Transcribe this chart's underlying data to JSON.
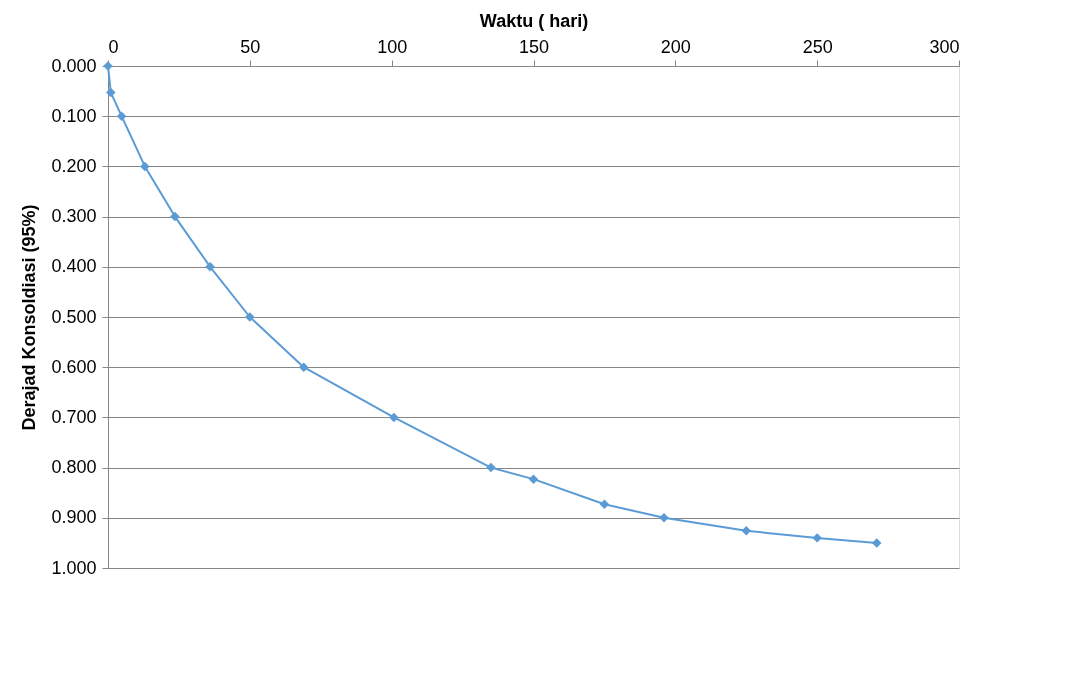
{
  "chart_data": {
    "type": "line",
    "xlabel": "Waktu ( hari)",
    "ylabel": "Derajad Konsoldiasi (95%)",
    "series": [
      {
        "color": "#5b9bd5",
        "x": [
          0,
          1,
          4.8,
          13,
          23.6,
          36,
          50,
          69,
          100.8,
          135,
          150,
          175,
          196,
          225,
          250,
          271
        ],
        "values": [
          0.0,
          0.053,
          0.1,
          0.2,
          0.3,
          0.4,
          0.5,
          0.6,
          0.7,
          0.8,
          0.823,
          0.873,
          0.9,
          0.926,
          0.94,
          0.95
        ]
      }
    ],
    "xlim": [
      0,
      300
    ],
    "xticks": [
      0,
      50,
      100,
      150,
      200,
      250,
      300
    ],
    "ylim": [
      1.0,
      0.0
    ],
    "yticks": [
      {
        "value": 0,
        "label": "0.000"
      },
      {
        "value": 0.1,
        "label": "0.100"
      },
      {
        "value": 0.2,
        "label": "0.200"
      },
      {
        "value": 0.3,
        "label": "0.300"
      },
      {
        "value": 0.4,
        "label": "0.400"
      },
      {
        "value": 0.5,
        "label": "0.500"
      },
      {
        "value": 0.6,
        "label": "0.600"
      },
      {
        "value": 0.7,
        "label": "0.700"
      },
      {
        "value": 0.8,
        "label": "0.800"
      },
      {
        "value": 0.9,
        "label": "0.900"
      },
      {
        "value": 1.0,
        "label": "1.000"
      }
    ],
    "grid": "y",
    "marker": "diamond",
    "line_style": "solid"
  }
}
